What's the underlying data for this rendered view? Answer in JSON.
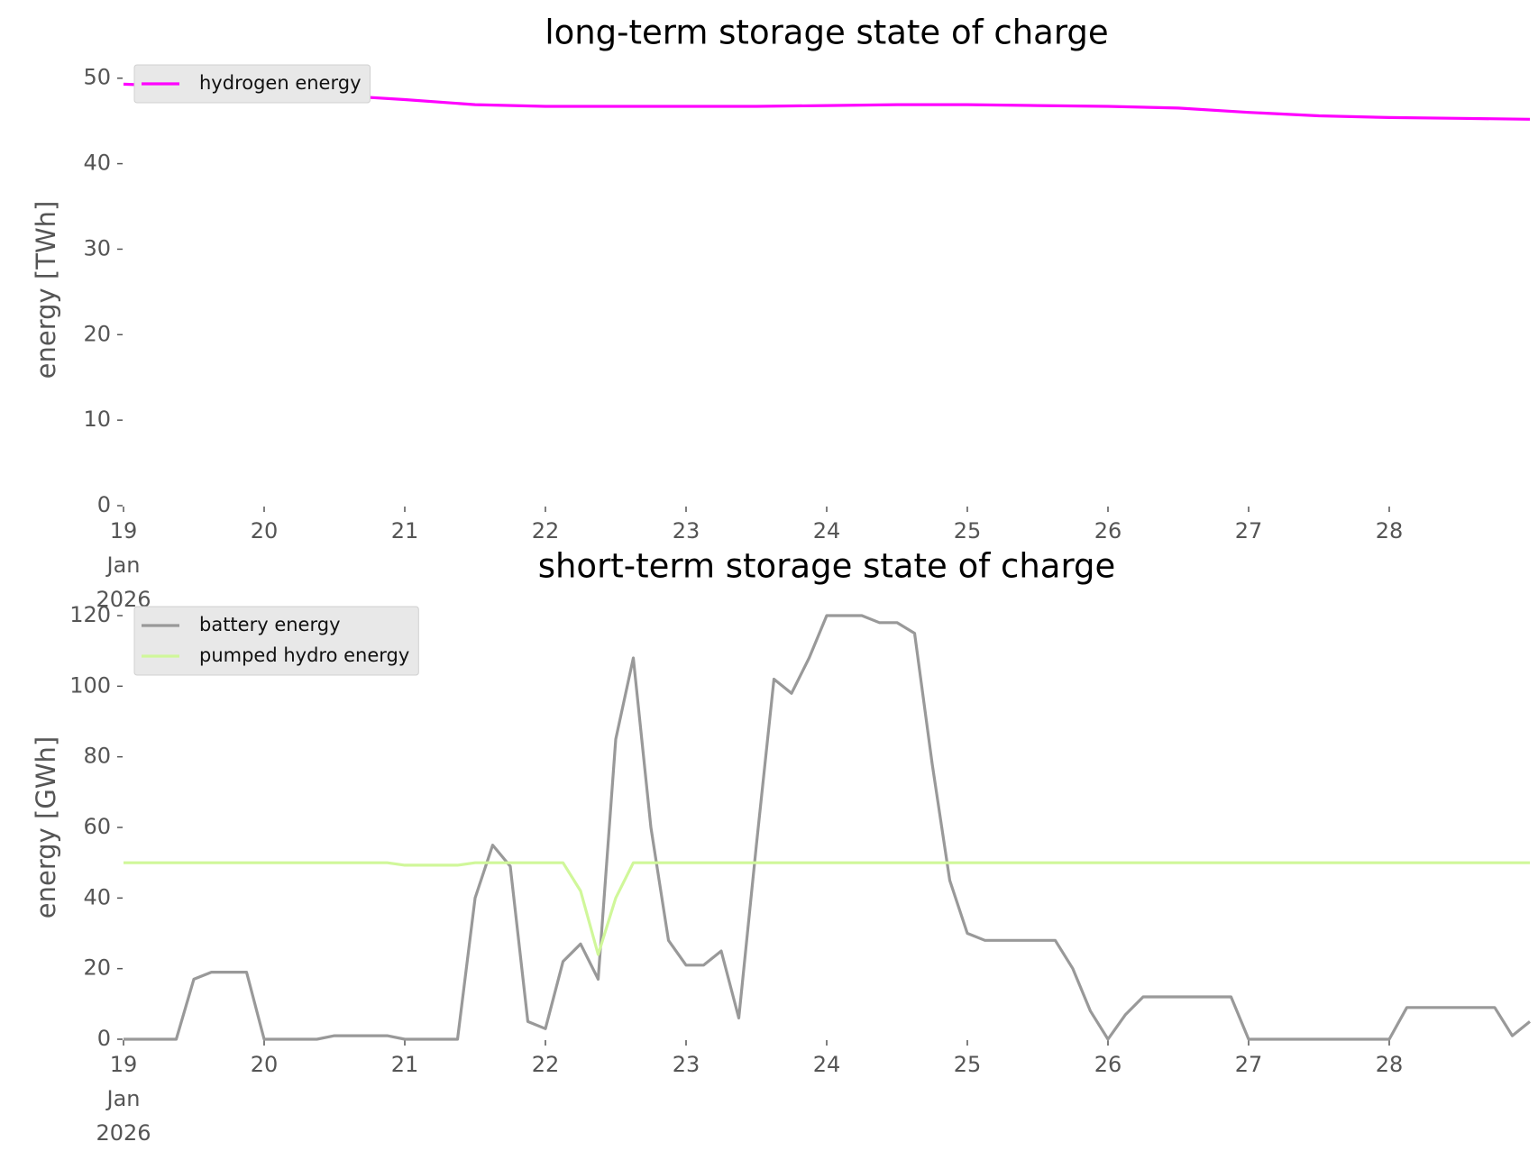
{
  "chart_data": [
    {
      "type": "line",
      "title": "long-term storage state of charge",
      "ylabel": "energy [TWh]",
      "x": [
        19,
        19.5,
        20,
        20.5,
        21,
        21.5,
        22,
        22.5,
        23,
        23.5,
        24,
        24.5,
        25,
        25.5,
        26,
        26.5,
        27,
        27.5,
        28,
        28.5,
        29
      ],
      "series": [
        {
          "name": "hydrogen energy",
          "color": "#ff00ff",
          "values": [
            49.3,
            49.0,
            48.5,
            48.0,
            47.5,
            46.9,
            46.7,
            46.7,
            46.7,
            46.7,
            46.8,
            46.9,
            46.9,
            46.8,
            46.7,
            46.5,
            46.0,
            45.6,
            45.4,
            45.3,
            45.2
          ]
        }
      ],
      "xlim": [
        19,
        29
      ],
      "xticks": [
        {
          "value": 19,
          "label": "19\nJan\n2026"
        },
        20,
        21,
        22,
        23,
        24,
        25,
        26,
        27,
        28
      ],
      "ylim": [
        0,
        50.5
      ],
      "yticks": [
        0,
        10,
        20,
        30,
        40,
        50
      ],
      "legend": "upper left",
      "grid": false
    },
    {
      "type": "line",
      "title": "short-term storage state of charge",
      "ylabel": "energy [GWh]",
      "x": [
        19,
        19.125,
        19.25,
        19.375,
        19.5,
        19.625,
        19.75,
        19.875,
        20,
        20.125,
        20.25,
        20.375,
        20.5,
        20.625,
        20.75,
        20.875,
        21,
        21.125,
        21.25,
        21.375,
        21.5,
        21.625,
        21.75,
        21.875,
        22,
        22.125,
        22.25,
        22.375,
        22.5,
        22.625,
        22.75,
        22.875,
        23,
        23.125,
        23.25,
        23.375,
        23.5,
        23.625,
        23.75,
        23.875,
        24,
        24.125,
        24.25,
        24.375,
        24.5,
        24.625,
        24.75,
        24.875,
        25,
        25.125,
        25.25,
        25.375,
        25.5,
        25.625,
        25.75,
        25.875,
        26,
        26.125,
        26.25,
        26.375,
        26.5,
        26.625,
        26.75,
        26.875,
        27,
        27.125,
        27.25,
        27.375,
        27.5,
        27.625,
        27.75,
        27.875,
        28,
        28.125,
        28.25,
        28.375,
        28.5,
        28.625,
        28.75,
        28.875,
        29
      ],
      "series": [
        {
          "name": "battery energy",
          "color": "#999999",
          "values": [
            0,
            0,
            0,
            0,
            17,
            19,
            19,
            19,
            0,
            0,
            0,
            0,
            1,
            1,
            1,
            1,
            0,
            0,
            0,
            0,
            40,
            55,
            49,
            5,
            3,
            22,
            27,
            17,
            85,
            108,
            60,
            28,
            21,
            21,
            25,
            6,
            55,
            102,
            98,
            108,
            120,
            120,
            120,
            118,
            118,
            115,
            78,
            45,
            30,
            28,
            28,
            28,
            28,
            28,
            20,
            8,
            0,
            7,
            12,
            12,
            12,
            12,
            12,
            12,
            0,
            0,
            0,
            0,
            0,
            0,
            0,
            0,
            0,
            9,
            9,
            9,
            9,
            9,
            9,
            1,
            5
          ]
        },
        {
          "name": "pumped hydro energy",
          "color": "#d0f79a",
          "values": [
            50,
            50,
            50,
            50,
            50,
            50,
            50,
            50,
            50,
            50,
            50,
            50,
            50,
            50,
            50,
            50,
            49.3,
            49.3,
            49.3,
            49.3,
            50,
            50,
            50,
            50,
            50,
            50,
            42,
            24,
            40,
            50,
            50,
            50,
            50,
            50,
            50,
            50,
            50,
            50,
            50,
            50,
            50,
            50,
            50,
            50,
            50,
            50,
            50,
            50,
            50,
            50,
            50,
            50,
            50,
            50,
            50,
            50,
            50,
            50,
            50,
            50,
            50,
            50,
            50,
            50,
            50,
            50,
            50,
            50,
            50,
            50,
            50,
            50,
            50,
            50,
            50,
            50,
            50,
            50,
            50,
            50,
            50
          ]
        }
      ],
      "xlim": [
        19,
        29
      ],
      "xticks": [
        {
          "value": 19,
          "label": "19\nJan\n2026"
        },
        20,
        21,
        22,
        23,
        24,
        25,
        26,
        27,
        28
      ],
      "ylim": [
        0,
        120
      ],
      "yticks": [
        0,
        20,
        40,
        60,
        80,
        100,
        120
      ],
      "legend": "upper left",
      "grid": false
    }
  ]
}
